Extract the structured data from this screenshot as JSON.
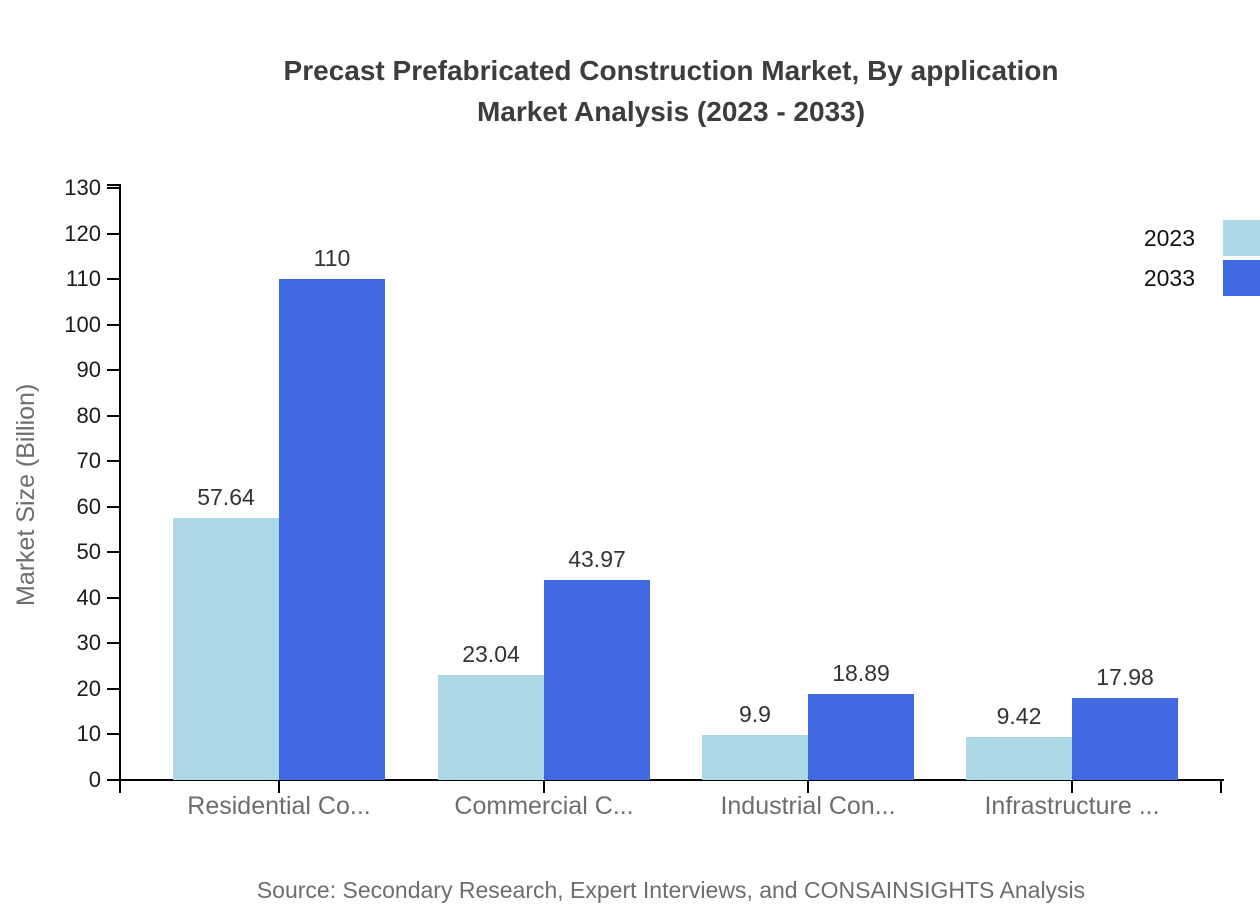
{
  "title": {
    "line1": "Precast Prefabricated Construction Market, By application",
    "line2": "Market Analysis (2023 - 2033)"
  },
  "source": "Source: Secondary Research, Expert Interviews, and CONSAINSIGHTS Analysis",
  "chart_data": {
    "type": "bar",
    "title": "Precast Prefabricated Construction Market, By application Market Analysis (2023 - 2033)",
    "ylabel": "Market Size (Billion)",
    "xlabel": "",
    "ylim": [
      0,
      130
    ],
    "ytick_step": 10,
    "ytick_labels": [
      "0",
      "10",
      "20",
      "30",
      "40",
      "50",
      "60",
      "70",
      "80",
      "90",
      "100",
      "110",
      "120",
      "130"
    ],
    "categories": [
      "Residential Co...",
      "Commercial C...",
      "Industrial Con...",
      "Infrastructure ..."
    ],
    "series": [
      {
        "name": "2023",
        "color": "#ADD8E6",
        "values": [
          57.64,
          23.04,
          9.9,
          9.42
        ],
        "value_labels": [
          "57.64",
          "23.04",
          "9.9",
          "9.42"
        ]
      },
      {
        "name": "2033",
        "color": "#4169E1",
        "values": [
          110,
          43.97,
          18.89,
          17.98
        ],
        "value_labels": [
          "110",
          "43.97",
          "18.89",
          "17.98"
        ]
      }
    ],
    "grid": false,
    "legend_position": "top-right",
    "bar_value_labels_shown": true
  },
  "colors": {
    "axis": "#000000",
    "title_text": "#3d3d3d",
    "tick_text": "#1a1a1a",
    "value_label_text": "#333333",
    "category_text": "#6d6d6d",
    "source_text": "#6d6d6d"
  }
}
